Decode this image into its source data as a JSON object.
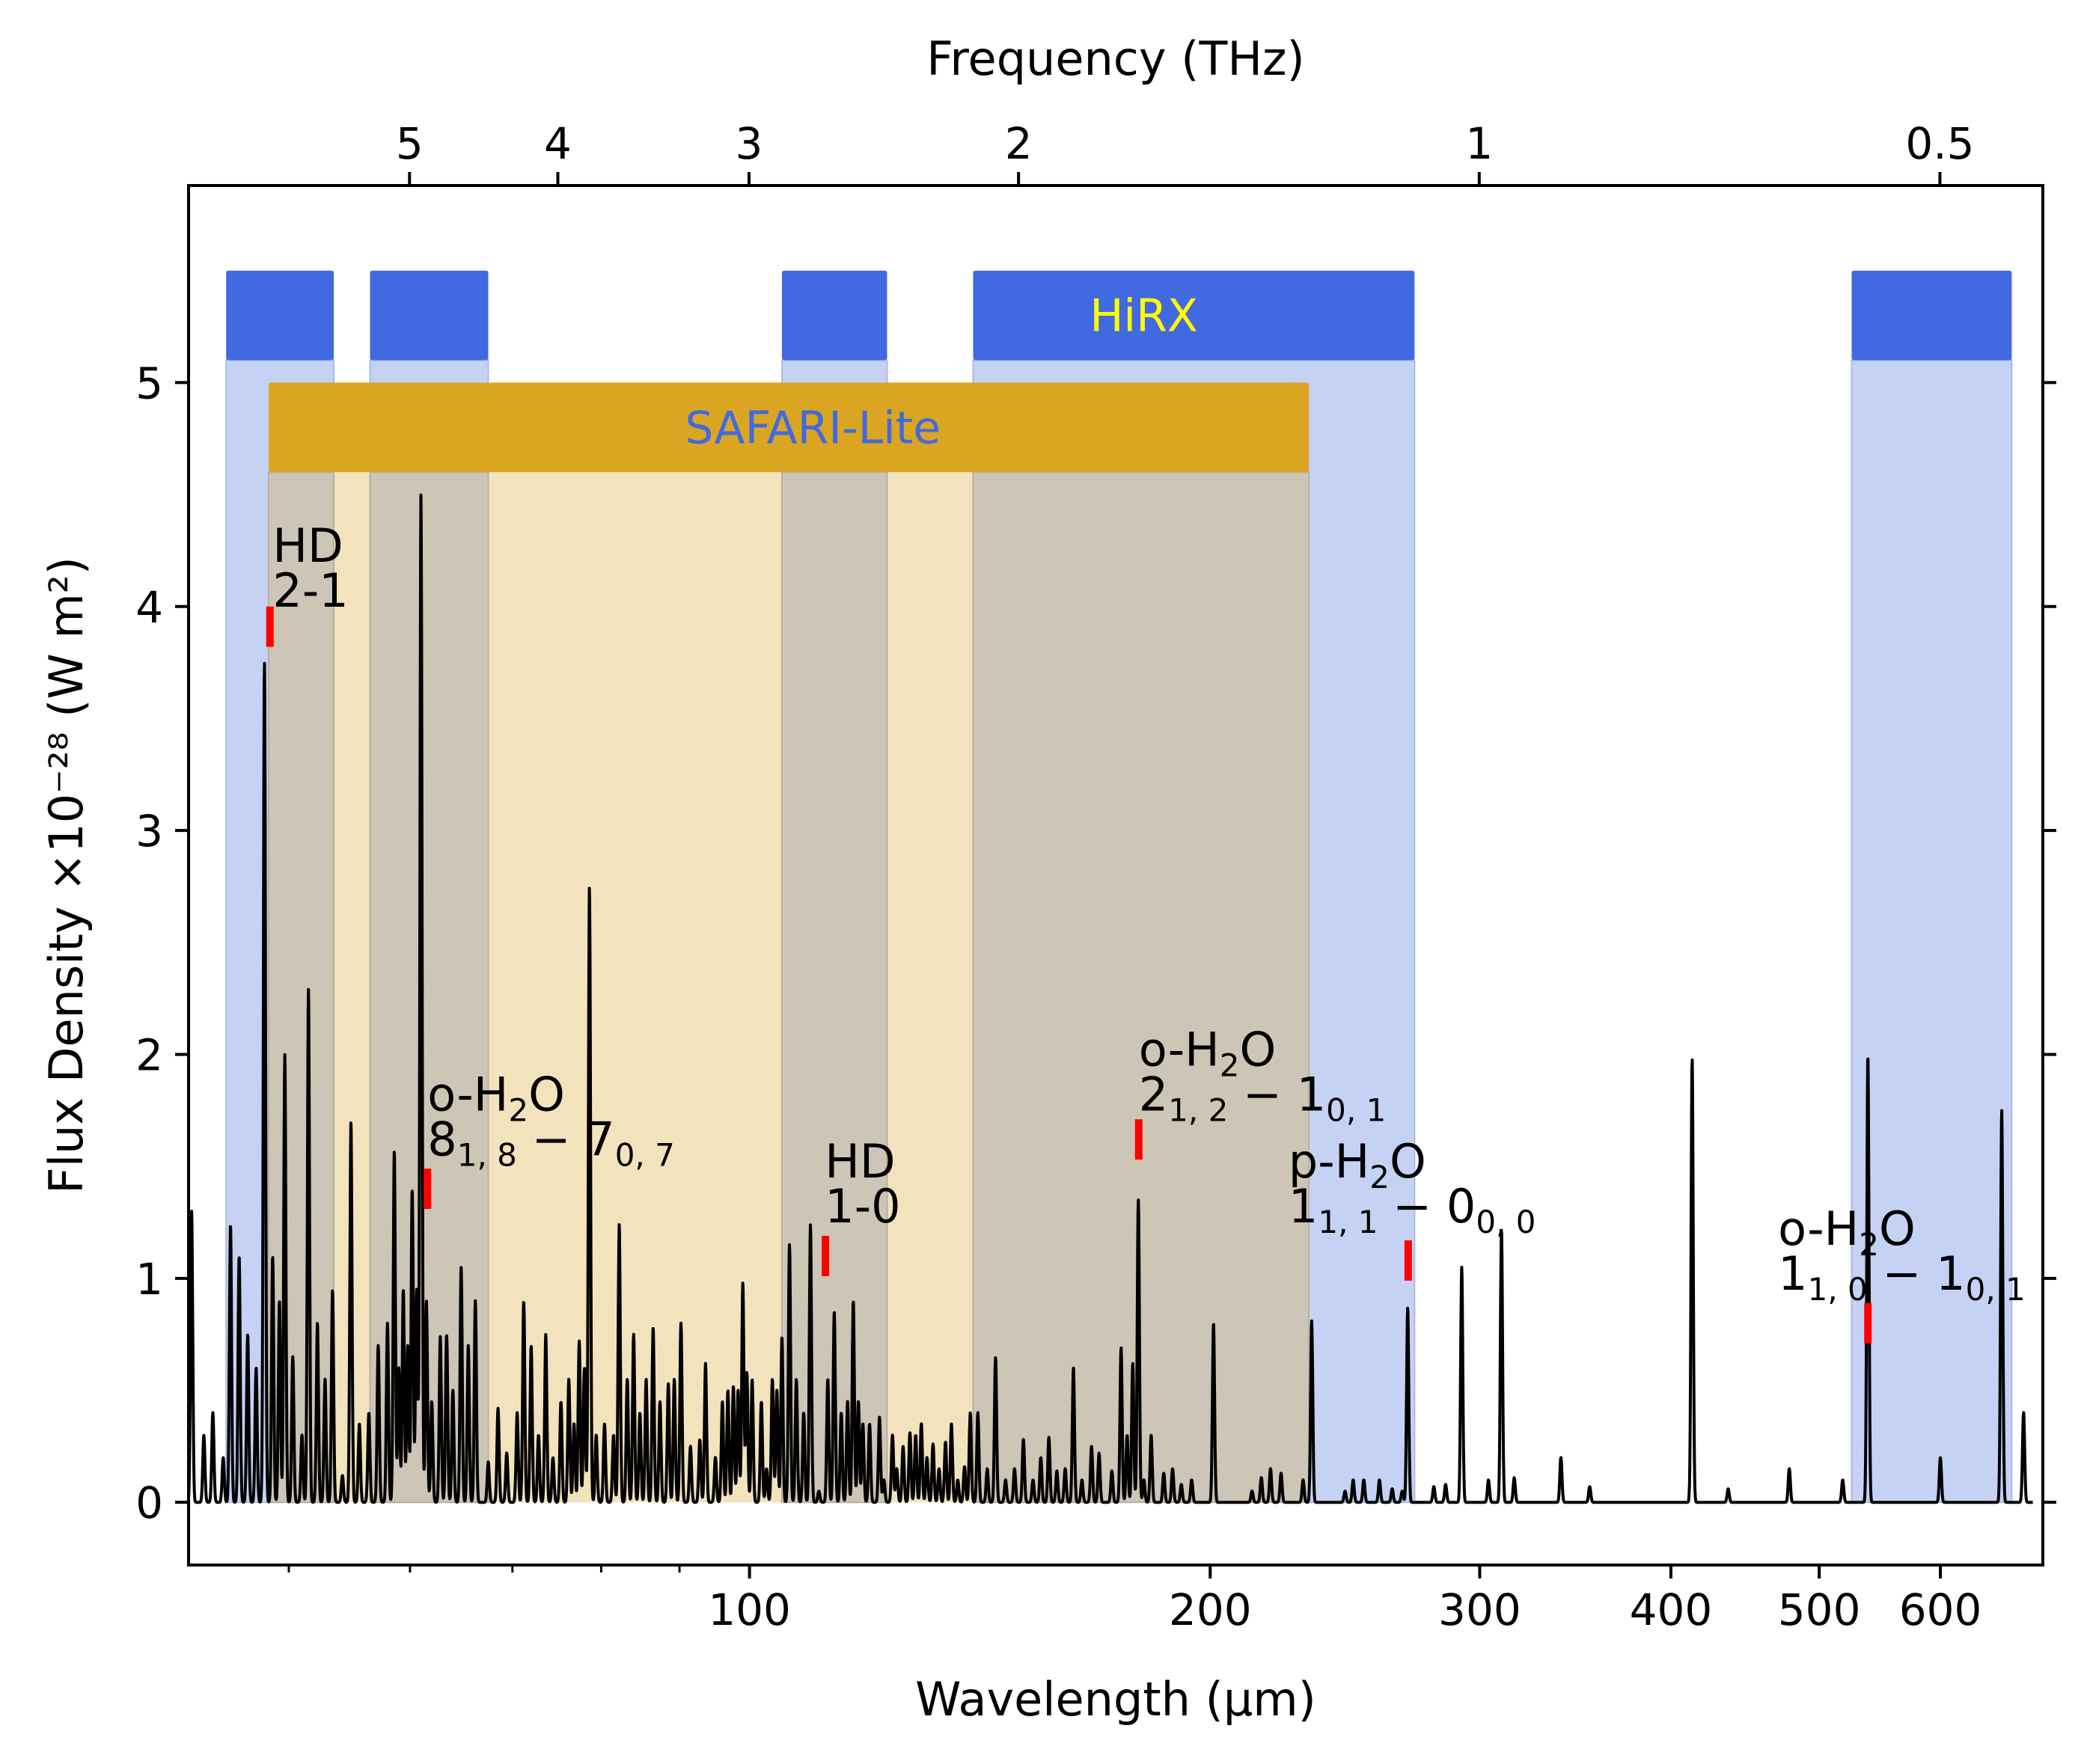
{
  "chart_data": {
    "type": "line",
    "title": "",
    "xlabel": "Wavelength (μm)",
    "ylabel": "Flux Density ×10⁻²⁸ (W m²)",
    "top_xlabel": "Frequency (THz)",
    "xscale": "log",
    "xlim": [
      43,
      700
    ],
    "ylim": [
      -0.28,
      5.88
    ],
    "x_ticks": [
      {
        "value": 100,
        "label": "100"
      },
      {
        "value": 200,
        "label": "200"
      },
      {
        "value": 300,
        "label": "300"
      },
      {
        "value": 400,
        "label": "400"
      },
      {
        "value": 500,
        "label": "500"
      },
      {
        "value": 600,
        "label": "600"
      }
    ],
    "x_minor_ticks": [
      50,
      60,
      70,
      80,
      90
    ],
    "y_ticks": [
      {
        "value": 0,
        "label": "0"
      },
      {
        "value": 1,
        "label": "1"
      },
      {
        "value": 2,
        "label": "2"
      },
      {
        "value": 3,
        "label": "3"
      },
      {
        "value": 4,
        "label": "4"
      },
      {
        "value": 5,
        "label": "5"
      }
    ],
    "top_ticks": [
      {
        "value": 5,
        "label": "5"
      },
      {
        "value": 4,
        "label": "4"
      },
      {
        "value": 3,
        "label": "3"
      },
      {
        "value": 2,
        "label": "2"
      },
      {
        "value": 1,
        "label": "1"
      },
      {
        "value": 0.5,
        "label": "0.5"
      }
    ],
    "hirx_bands": [
      {
        "x0": 45.5,
        "x1": 53.5
      },
      {
        "x0": 56.5,
        "x1": 67.5
      },
      {
        "x0": 105,
        "x1": 123
      },
      {
        "x0": 140,
        "x1": 272
      },
      {
        "x0": 525,
        "x1": 668
      }
    ],
    "hirx_label": "HiRX",
    "hirx_label_at": 181,
    "safari_band": {
      "x0": 48.5,
      "x1": 232,
      "label": "SAFARI-Lite"
    },
    "safari_label_at": 110,
    "colors": {
      "hirx_bar": "#4169e1",
      "hirx_fill": "#c5d2f4",
      "hirx_label": "#ffff00",
      "safari_bar": "#daa520",
      "safari_fill": "#f2e3bc",
      "overlap_fill": "#cdc5b5",
      "safari_label": "#4169e1",
      "marker": "#ff0000",
      "spectrum": "#000000"
    },
    "series": [
      {
        "peaks": [
          [
            43.2,
            1.3
          ],
          [
            44.0,
            0.3
          ],
          [
            44.6,
            0.4
          ],
          [
            45.3,
            0.2
          ],
          [
            45.8,
            1.24
          ],
          [
            46.4,
            1.1
          ],
          [
            47.0,
            0.75
          ],
          [
            47.6,
            0.6
          ],
          [
            48.2,
            3.75
          ],
          [
            48.8,
            1.1
          ],
          [
            49.3,
            0.9
          ],
          [
            49.7,
            2.0
          ],
          [
            50.3,
            0.65
          ],
          [
            51.0,
            0.3
          ],
          [
            51.5,
            2.29
          ],
          [
            52.2,
            0.8
          ],
          [
            52.8,
            0.55
          ],
          [
            53.4,
            0.95
          ],
          [
            54.2,
            0.12
          ],
          [
            54.9,
            1.7
          ],
          [
            55.6,
            0.35
          ],
          [
            56.4,
            0.4
          ],
          [
            57.2,
            0.7
          ],
          [
            58.0,
            0.8
          ],
          [
            58.6,
            1.57
          ],
          [
            59.0,
            0.6
          ],
          [
            59.4,
            0.95
          ],
          [
            59.8,
            0.7
          ],
          [
            60.2,
            1.4
          ],
          [
            60.6,
            0.95
          ],
          [
            61.0,
            4.5
          ],
          [
            61.5,
            0.9
          ],
          [
            62.0,
            0.45
          ],
          [
            62.8,
            0.74
          ],
          [
            63.4,
            0.75
          ],
          [
            64.0,
            0.5
          ],
          [
            64.8,
            1.05
          ],
          [
            65.5,
            0.7
          ],
          [
            66.2,
            0.9
          ],
          [
            67.5,
            0.18
          ],
          [
            68.5,
            0.42
          ],
          [
            69.4,
            0.22
          ],
          [
            70.5,
            0.4
          ],
          [
            71.2,
            0.9
          ],
          [
            72.0,
            0.7
          ],
          [
            72.8,
            0.3
          ],
          [
            73.6,
            0.75
          ],
          [
            74.4,
            0.2
          ],
          [
            75.3,
            0.45
          ],
          [
            76.2,
            0.55
          ],
          [
            76.8,
            0.35
          ],
          [
            77.4,
            0.72
          ],
          [
            78.0,
            0.6
          ],
          [
            78.6,
            2.75
          ],
          [
            79.4,
            0.3
          ],
          [
            80.4,
            0.35
          ],
          [
            81.5,
            0.3
          ],
          [
            82.2,
            1.24
          ],
          [
            83.2,
            0.55
          ],
          [
            84.0,
            0.75
          ],
          [
            84.8,
            0.4
          ],
          [
            85.6,
            0.55
          ],
          [
            86.5,
            0.78
          ],
          [
            87.4,
            0.45
          ],
          [
            88.5,
            0.53
          ],
          [
            89.3,
            0.55
          ],
          [
            90.2,
            0.8
          ],
          [
            91.5,
            0.25
          ],
          [
            92.8,
            0.28
          ],
          [
            93.6,
            0.62
          ],
          [
            95.0,
            0.2
          ],
          [
            96.0,
            0.45
          ],
          [
            96.8,
            0.5
          ],
          [
            97.6,
            0.52
          ],
          [
            98.3,
            0.5
          ],
          [
            99.0,
            0.98
          ],
          [
            99.6,
            0.58
          ],
          [
            100.4,
            0.55
          ],
          [
            101.8,
            0.45
          ],
          [
            102.6,
            0.15
          ],
          [
            103.5,
            0.55
          ],
          [
            104.2,
            0.5
          ],
          [
            105.0,
            0.74
          ],
          [
            106.2,
            1.15
          ],
          [
            107.3,
            0.55
          ],
          [
            108.5,
            0.4
          ],
          [
            109.6,
            1.24
          ],
          [
            111.0,
            0.05
          ],
          [
            112.5,
            0.55
          ],
          [
            113.6,
            0.85
          ],
          [
            114.8,
            0.4
          ],
          [
            115.9,
            0.45
          ],
          [
            116.9,
            0.9
          ],
          [
            117.8,
            0.45
          ],
          [
            118.6,
            0.35
          ],
          [
            119.8,
            0.35
          ],
          [
            121.6,
            0.38
          ],
          [
            122.4,
            0.1
          ],
          [
            124.0,
            0.3
          ],
          [
            124.8,
            0.15
          ],
          [
            126.0,
            0.25
          ],
          [
            127.3,
            0.31
          ],
          [
            128.4,
            0.3
          ],
          [
            129.5,
            0.35
          ],
          [
            130.6,
            0.2
          ],
          [
            131.8,
            0.26
          ],
          [
            133.0,
            0.15
          ],
          [
            134.3,
            0.27
          ],
          [
            135.5,
            0.35
          ],
          [
            136.8,
            0.1
          ],
          [
            138.2,
            0.16
          ],
          [
            139.4,
            0.4
          ],
          [
            141.0,
            0.4
          ],
          [
            143.0,
            0.15
          ],
          [
            144.8,
            0.65
          ],
          [
            147.0,
            0.1
          ],
          [
            149.0,
            0.15
          ],
          [
            151.0,
            0.28
          ],
          [
            153.2,
            0.1
          ],
          [
            155.0,
            0.2
          ],
          [
            156.9,
            0.29
          ],
          [
            158.8,
            0.14
          ],
          [
            160.8,
            0.15
          ],
          [
            162.8,
            0.6
          ],
          [
            164.9,
            0.1
          ],
          [
            167.3,
            0.25
          ],
          [
            169.2,
            0.22
          ],
          [
            172.5,
            0.14
          ],
          [
            174.9,
            0.69
          ],
          [
            176.5,
            0.3
          ],
          [
            178.0,
            0.62
          ],
          [
            179.5,
            1.35
          ],
          [
            181.0,
            0.1
          ],
          [
            183.0,
            0.3
          ],
          [
            186.5,
            0.13
          ],
          [
            189.0,
            0.15
          ],
          [
            191.5,
            0.08
          ],
          [
            194.5,
            0.1
          ],
          [
            201.0,
            0.8
          ],
          [
            213.0,
            0.05
          ],
          [
            216.0,
            0.11
          ],
          [
            219.0,
            0.15
          ],
          [
            222.5,
            0.13
          ],
          [
            230.0,
            0.1
          ],
          [
            233.0,
            0.81
          ],
          [
            245.0,
            0.05
          ],
          [
            248.0,
            0.1
          ],
          [
            252.0,
            0.1
          ],
          [
            258.0,
            0.1
          ],
          [
            263.0,
            0.06
          ],
          [
            267.0,
            0.05
          ],
          [
            269.2,
            0.87
          ],
          [
            280.0,
            0.07
          ],
          [
            285.0,
            0.08
          ],
          [
            292.0,
            1.05
          ],
          [
            304.0,
            0.1
          ],
          [
            310.0,
            1.22
          ],
          [
            316.0,
            0.11
          ],
          [
            339.0,
            0.2
          ],
          [
            354.0,
            0.07
          ],
          [
            413.0,
            1.98
          ],
          [
            436.0,
            0.06
          ],
          [
            478.0,
            0.15
          ],
          [
            518.0,
            0.1
          ],
          [
            538.0,
            2.0
          ],
          [
            600.0,
            0.2
          ],
          [
            658.0,
            1.75
          ],
          [
            680.0,
            0.4
          ]
        ]
      }
    ],
    "markers": [
      {
        "x": 48.6,
        "y0": 3.82,
        "y1": 4.0
      },
      {
        "x": 61.6,
        "y0": 1.31,
        "y1": 1.49
      },
      {
        "x": 112.1,
        "y0": 1.01,
        "y1": 1.19
      },
      {
        "x": 179.6,
        "y0": 1.53,
        "y1": 1.71
      },
      {
        "x": 269.4,
        "y0": 0.99,
        "y1": 1.17
      },
      {
        "x": 538.0,
        "y0": 0.71,
        "y1": 0.89
      }
    ],
    "annotations": [
      {
        "x": 48.8,
        "y": 4.2,
        "lines": [
          {
            "text": "HD"
          },
          {
            "text": " 2-1"
          }
        ]
      },
      {
        "x": 61.6,
        "y": 1.75,
        "lines": [
          {
            "text": "o-H",
            "sub": "2",
            "tail": "O"
          },
          {
            "text": " 8",
            "sub": "1, 8",
            "tail": " − 7",
            "sub2": "0, 7"
          }
        ]
      },
      {
        "x": 112.0,
        "y": 1.45,
        "lines": [
          {
            "text": "HD"
          },
          {
            "text": " 1-0"
          }
        ]
      },
      {
        "x": 179.6,
        "y": 1.95,
        "lines": [
          {
            "text": "o-H",
            "sub": "2",
            "tail": "O"
          },
          {
            "text": " 2",
            "sub": "1, 2",
            "tail": " − 1",
            "sub2": "0, 1"
          }
        ]
      },
      {
        "x": 225.0,
        "y": 1.45,
        "lines": [
          {
            "text": "p-H",
            "sub": "2",
            "tail": "O"
          },
          {
            "text": " 1",
            "sub": "1, 1",
            "tail": " − 0",
            "sub2": "0, 0"
          }
        ]
      },
      {
        "x": 470.0,
        "y": 1.15,
        "lines": [
          {
            "text": "o-H",
            "sub": "2",
            "tail": "O"
          },
          {
            "text": " 1",
            "sub": "1, 0",
            "tail": " − 1",
            "sub2": "0, 1"
          }
        ]
      }
    ]
  }
}
